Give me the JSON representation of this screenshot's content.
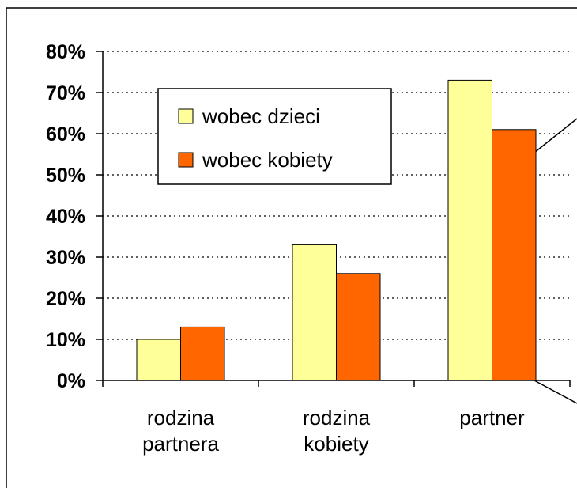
{
  "chart_data": {
    "type": "bar",
    "categories": [
      "rodzina partnera",
      "rodzina kobiety",
      "partner"
    ],
    "series": [
      {
        "name": "wobec dzieci",
        "color": "#ffff99",
        "values": [
          10,
          33,
          73
        ]
      },
      {
        "name": "wobec kobiety",
        "color": "#ff6600",
        "values": [
          13,
          26,
          61
        ]
      }
    ],
    "ylim": [
      0,
      80
    ],
    "yticks": [
      {
        "value": 0,
        "label": "0%"
      },
      {
        "value": 10,
        "label": "10%"
      },
      {
        "value": 20,
        "label": "20%"
      },
      {
        "value": 30,
        "label": "30%"
      },
      {
        "value": 40,
        "label": "40%"
      },
      {
        "value": 50,
        "label": "50%"
      },
      {
        "value": 60,
        "label": "60%"
      },
      {
        "value": 70,
        "label": "70%"
      },
      {
        "value": 80,
        "label": "80%"
      }
    ],
    "grid": true
  }
}
